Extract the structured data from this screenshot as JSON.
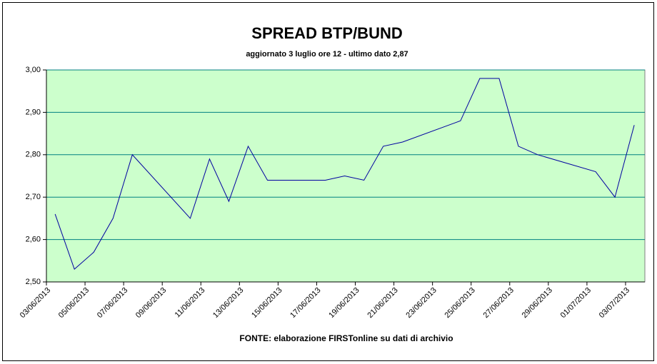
{
  "chart_data": {
    "type": "line",
    "title": "SPREAD BTP/BUND",
    "subtitle": "aggiornato 3 luglio ore 12 - ultimo dato 2,87",
    "source": "FONTE:  elaborazione FIRSTonline su dati di archivio",
    "x": [
      "03/06/2013",
      "04/06/2013",
      "05/06/2013",
      "06/06/2013",
      "07/06/2013",
      "10/06/2013",
      "11/06/2013",
      "12/06/2013",
      "13/06/2013",
      "14/06/2013",
      "17/06/2013",
      "18/06/2013",
      "19/06/2013",
      "20/06/2013",
      "21/06/2013",
      "24/06/2013",
      "25/06/2013",
      "26/06/2013",
      "27/06/2013",
      "28/06/2013",
      "01/07/2013",
      "02/07/2013",
      "03/07/2013"
    ],
    "series": [
      {
        "color": "#0000a0",
        "values": [
          2.66,
          2.53,
          2.57,
          2.65,
          2.8,
          2.65,
          2.79,
          2.69,
          2.82,
          2.74,
          2.74,
          2.75,
          2.74,
          2.82,
          2.83,
          2.88,
          2.98,
          2.98,
          2.82,
          2.8,
          2.76,
          2.7,
          2.87
        ]
      }
    ],
    "xlim": [
      "03/06/2013",
      "04/07/2013"
    ],
    "xticks": [
      "03/06/2013",
      "05/06/2013",
      "07/06/2013",
      "09/06/2013",
      "11/06/2013",
      "13/06/2013",
      "15/06/2013",
      "17/06/2013",
      "19/06/2013",
      "21/06/2013",
      "23/06/2013",
      "25/06/2013",
      "27/06/2013",
      "29/06/2013",
      "01/07/2013",
      "03/07/2013"
    ],
    "ylim": [
      2.5,
      3.0
    ],
    "yticks": [
      {
        "value": 2.5,
        "label": "2,50"
      },
      {
        "value": 2.6,
        "label": "2,60"
      },
      {
        "value": 2.7,
        "label": "2,70"
      },
      {
        "value": 2.8,
        "label": "2,80"
      },
      {
        "value": 2.9,
        "label": "2,90"
      },
      {
        "value": 3.0,
        "label": "3,00"
      }
    ],
    "grid": true,
    "background": "#ccffcc"
  }
}
